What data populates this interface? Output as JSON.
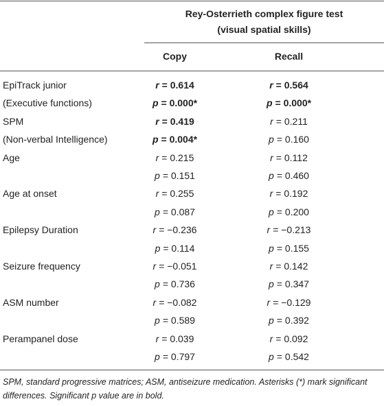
{
  "table": {
    "header": {
      "group_title": [
        "Rey-Osterrieth complex figure test",
        "(visual spatial skills)"
      ],
      "columns": [
        "Copy",
        "Recall"
      ]
    },
    "rows": [
      {
        "label": "EpiTrack junior",
        "cells": [
          {
            "symbol": "r",
            "text": "= 0.614",
            "bold": true
          },
          {
            "symbol": "r",
            "text": "= 0.564",
            "bold": true
          }
        ]
      },
      {
        "label": "(Executive functions)",
        "cells": [
          {
            "symbol": "p",
            "text": "= 0.000*",
            "bold": true
          },
          {
            "symbol": "p",
            "text": "= 0.000*",
            "bold": true
          }
        ]
      },
      {
        "label": "SPM",
        "cells": [
          {
            "symbol": "r",
            "text": "= 0.419",
            "bold": true
          },
          {
            "symbol": "r",
            "text": "= 0.211"
          }
        ]
      },
      {
        "label": "(Non-verbal Intelligence)",
        "cells": [
          {
            "symbol": "p",
            "text": "= 0.004*",
            "bold": true
          },
          {
            "symbol": "p",
            "text": "= 0.160"
          }
        ]
      },
      {
        "label": "Age",
        "cells": [
          {
            "symbol": "r",
            "text": "= 0.215"
          },
          {
            "symbol": "r",
            "text": "= 0.112"
          }
        ]
      },
      {
        "cells": [
          {
            "symbol": "p",
            "text": "= 0.151"
          },
          {
            "symbol": "p",
            "text": "= 0.460"
          }
        ]
      },
      {
        "label": "Age at onset",
        "cells": [
          {
            "symbol": "r",
            "text": "= 0.255"
          },
          {
            "symbol": "r",
            "text": "= 0.192"
          }
        ]
      },
      {
        "cells": [
          {
            "symbol": "p",
            "text": "= 0.087"
          },
          {
            "symbol": "p",
            "text": "= 0.200"
          }
        ]
      },
      {
        "label": "Epilepsy Duration",
        "cells": [
          {
            "symbol": "r",
            "text": "= −0.236"
          },
          {
            "symbol": "r",
            "text": "= −0.213"
          }
        ]
      },
      {
        "cells": [
          {
            "symbol": "p",
            "text": "= 0.114"
          },
          {
            "symbol": "p",
            "text": "= 0.155"
          }
        ]
      },
      {
        "label": "Seizure frequency",
        "cells": [
          {
            "symbol": "r",
            "text": "= −0.051"
          },
          {
            "symbol": "r",
            "text": "= 0.142"
          }
        ]
      },
      {
        "cells": [
          {
            "symbol": "p",
            "text": "= 0.736"
          },
          {
            "symbol": "p",
            "text": "= 0.347"
          }
        ]
      },
      {
        "label": "ASM number",
        "cells": [
          {
            "symbol": "r",
            "text": "= −0.082"
          },
          {
            "symbol": "r",
            "text": "= −0.129"
          }
        ]
      },
      {
        "cells": [
          {
            "symbol": "p",
            "text": "= 0.589"
          },
          {
            "symbol": "p",
            "text": "= 0.392"
          }
        ]
      },
      {
        "label": "Perampanel dose",
        "cells": [
          {
            "symbol": "r",
            "text": "= 0.039"
          },
          {
            "symbol": "r",
            "text": "= 0.092"
          }
        ]
      },
      {
        "cells": [
          {
            "symbol": "p",
            "text": "= 0.797"
          },
          {
            "symbol": "p",
            "text": "= 0.542"
          }
        ]
      }
    ],
    "footnote": "SPM, standard progressive matrices; ASM, antiseizure medication. Asterisks (*) mark significant differences. Significant p value are in bold."
  }
}
